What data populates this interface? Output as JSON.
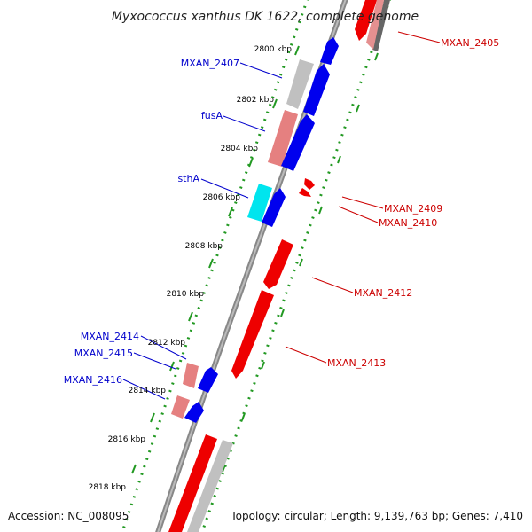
{
  "title": "Myxococcus xanthus DK 1622, complete genome",
  "footer": {
    "accession": "Accession: NC_008095",
    "summary": "Topology: circular; Length: 9,139,763 bp; Genes: 7,410"
  },
  "ticks": [
    "2800 kbp",
    "2802 kbp",
    "2804 kbp",
    "2806 kbp",
    "2808 kbp",
    "2810 kbp",
    "2812 kbp",
    "2814 kbp",
    "2816 kbp",
    "2818 kbp"
  ],
  "labels": {
    "left": [
      "MXAN_2407",
      "fusA",
      "sthA",
      "MXAN_2414",
      "MXAN_2415",
      "MXAN_2416"
    ],
    "right": [
      "MXAN_2405",
      "MXAN_2409",
      "MXAN_2410",
      "MXAN_2412",
      "MXAN_2413"
    ]
  },
  "colors": {
    "forward_cds": "#0000ee",
    "reverse_cds": "#ee0000",
    "gene_forward": "#e58080",
    "gene_reverse": "#c0c0c0",
    "highlight": "#00e5ee",
    "backbone": "#888888",
    "dotted_ring": "#229922",
    "label_forward": "#0000cc",
    "label_reverse": "#cc0000"
  }
}
